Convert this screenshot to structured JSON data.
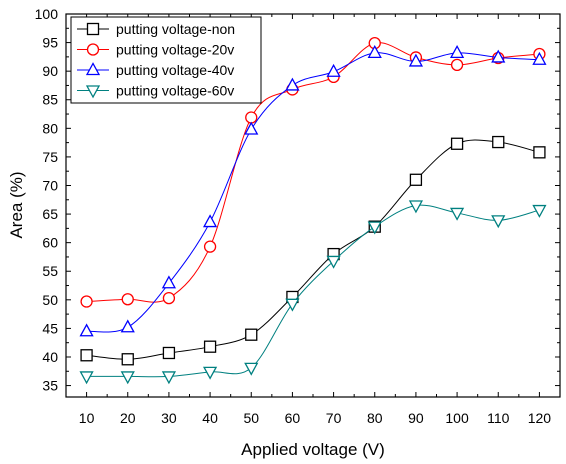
{
  "chart_data": {
    "type": "line",
    "xlabel": "Applied voltage (V)",
    "ylabel": "Area (%)",
    "xlim": [
      5,
      125
    ],
    "ylim": [
      33,
      100
    ],
    "x": [
      10,
      20,
      30,
      40,
      50,
      60,
      70,
      80,
      90,
      100,
      110,
      120
    ],
    "x_ticks": [
      "10",
      "20",
      "30",
      "40",
      "50",
      "60",
      "70",
      "80",
      "90",
      "100",
      "110",
      "120"
    ],
    "y_ticks": [
      "35",
      "40",
      "45",
      "50",
      "55",
      "60",
      "65",
      "70",
      "75",
      "80",
      "85",
      "90",
      "95",
      "100"
    ],
    "legend_position": "top-left",
    "grid": false,
    "series": [
      {
        "name": "putting voltage-non",
        "color": "#000000",
        "marker": "square",
        "values": [
          40.3,
          39.6,
          40.7,
          41.8,
          43.9,
          50.5,
          58.0,
          62.8,
          71.0,
          77.3,
          77.6,
          75.8
        ]
      },
      {
        "name": "putting voltage-20v",
        "color": "#ff0000",
        "marker": "circle",
        "values": [
          49.7,
          50.1,
          50.3,
          59.3,
          81.9,
          86.8,
          89.0,
          94.9,
          92.4,
          91.1,
          92.3,
          93.0
        ]
      },
      {
        "name": "putting voltage-40v",
        "color": "#0000ff",
        "marker": "triangle-up",
        "values": [
          44.5,
          45.2,
          52.9,
          63.6,
          79.8,
          87.5,
          89.9,
          93.2,
          91.7,
          93.2,
          92.4,
          92.0
        ]
      },
      {
        "name": "putting voltage-60v",
        "color": "#008080",
        "marker": "triangle-down",
        "values": [
          36.6,
          36.6,
          36.6,
          37.4,
          38.1,
          49.3,
          56.8,
          62.8,
          66.5,
          65.2,
          63.9,
          65.7
        ]
      }
    ]
  }
}
